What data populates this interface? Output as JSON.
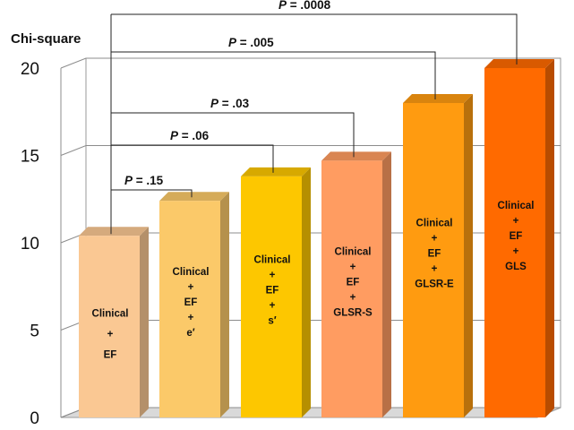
{
  "chart_data": {
    "type": "bar",
    "style": "3d",
    "ylabel": "Chi-square",
    "ylim": [
      0,
      20
    ],
    "yticks": [
      "0",
      "5",
      "10",
      "15",
      "20"
    ],
    "grid": true,
    "bars": [
      {
        "value": 10.4,
        "color": "#FAC893",
        "label_lines": [
          "Clinical",
          "+",
          "EF"
        ]
      },
      {
        "value": 12.4,
        "color": "#FBC969",
        "label_lines": [
          "Clinical",
          "+",
          "EF",
          "+",
          "e′"
        ]
      },
      {
        "value": 13.8,
        "color": "#FDC700",
        "label_lines": [
          "Clinical",
          "+",
          "EF",
          "+",
          "s′"
        ]
      },
      {
        "value": 14.7,
        "color": "#FF9C61",
        "label_lines": [
          "Clinical",
          "+",
          "EF",
          "+",
          "GLSR-S"
        ]
      },
      {
        "value": 18.0,
        "color": "#FF9B10",
        "label_lines": [
          "Clinical",
          "+",
          "EF",
          "+",
          "GLSR-E"
        ]
      },
      {
        "value": 20.0,
        "color": "#FF6A00",
        "label_lines": [
          "Clinical",
          "+",
          "EF",
          "+",
          "GLS"
        ]
      }
    ],
    "comparisons": [
      {
        "from": 0,
        "to": 1,
        "p_label": "P",
        "p_value": ".15"
      },
      {
        "from": 0,
        "to": 2,
        "p_label": "P",
        "p_value": ".06"
      },
      {
        "from": 0,
        "to": 3,
        "p_label": "P",
        "p_value": ".03"
      },
      {
        "from": 0,
        "to": 4,
        "p_label": "P",
        "p_value": ".005"
      },
      {
        "from": 0,
        "to": 5,
        "p_label": "P",
        "p_value": ".0008"
      }
    ]
  }
}
